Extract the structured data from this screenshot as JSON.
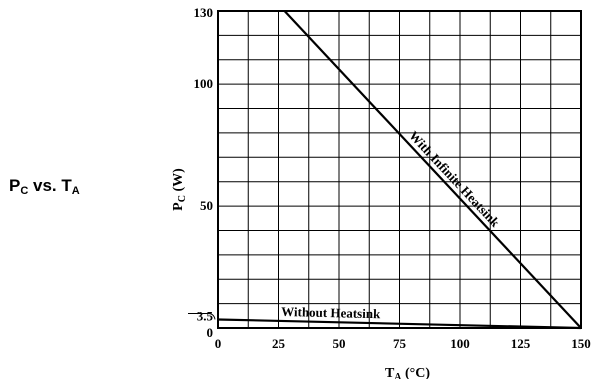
{
  "side_title": {
    "main": "P",
    "main_sub": "C",
    "vs": " vs. T",
    "vs_sub": "A"
  },
  "chart_data": {
    "type": "line",
    "xlabel": {
      "main": "T",
      "sub": "A",
      "unit": " (°C)"
    },
    "ylabel": {
      "main": "P",
      "sub": "C",
      "unit": " (W)"
    },
    "xlim": [
      0,
      150
    ],
    "ylim": [
      0,
      130
    ],
    "x_ticks": [
      0,
      25,
      50,
      75,
      100,
      125,
      150
    ],
    "y_ticks": [
      {
        "value": 0,
        "label": "0"
      },
      {
        "value": 3.5,
        "label": "3.5"
      },
      {
        "value": 50,
        "label": "50"
      },
      {
        "value": 100,
        "label": "100"
      },
      {
        "value": 130,
        "label": "130"
      }
    ],
    "x_grid_step": 12.5,
    "y_grid_step": 10,
    "grid": true,
    "series": [
      {
        "name": "With Infinite Heatsink",
        "x": [
          27.5,
          150
        ],
        "y": [
          130,
          0
        ]
      },
      {
        "name": "Without Heatsink",
        "x": [
          0,
          150
        ],
        "y": [
          3.5,
          0
        ]
      }
    ]
  }
}
